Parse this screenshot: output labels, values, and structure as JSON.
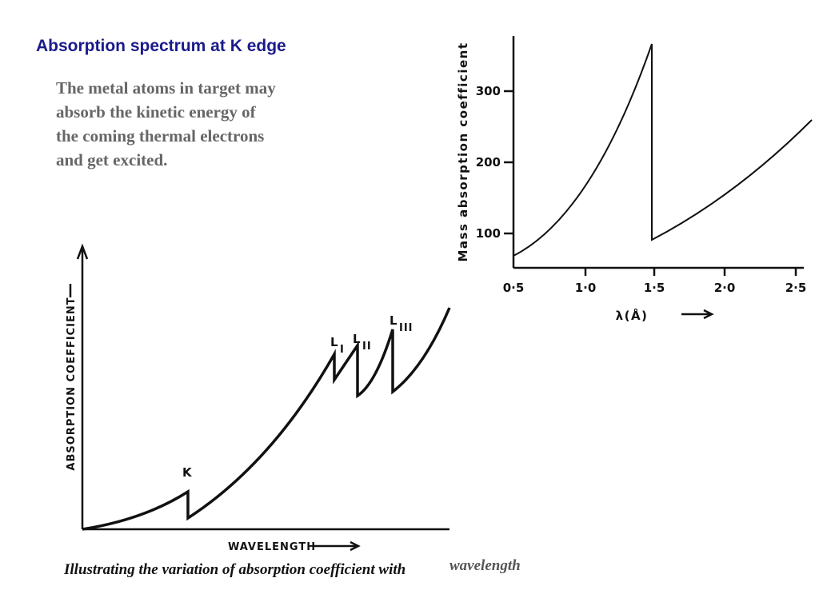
{
  "header": {
    "title": "Absorption spectrum at K edge"
  },
  "paragraph": [
    "The metal atoms in target may",
    "absorb the kinetic energy of",
    "the coming thermal electrons",
    "and get excited."
  ],
  "right_figure": {
    "ylabel": "Mass absorption coefficient",
    "yticks": [
      "300",
      "200",
      "100"
    ],
    "xticks": [
      "0·5",
      "1·0",
      "1·5",
      "2·0",
      "2·5"
    ],
    "xlabel": "λ(Å)"
  },
  "left_figure": {
    "ylabel": "ABSORPTION COEFFICIENT",
    "xlabel": "WAVELENGTH",
    "edges": [
      {
        "letter": "K",
        "sub": ""
      },
      {
        "letter": "L",
        "sub": "I"
      },
      {
        "letter": "L",
        "sub": "II"
      },
      {
        "letter": "L",
        "sub": "III"
      }
    ],
    "caption": "Illustrating the variation of absorption coefficient with",
    "caption_end": "wavelength"
  }
}
